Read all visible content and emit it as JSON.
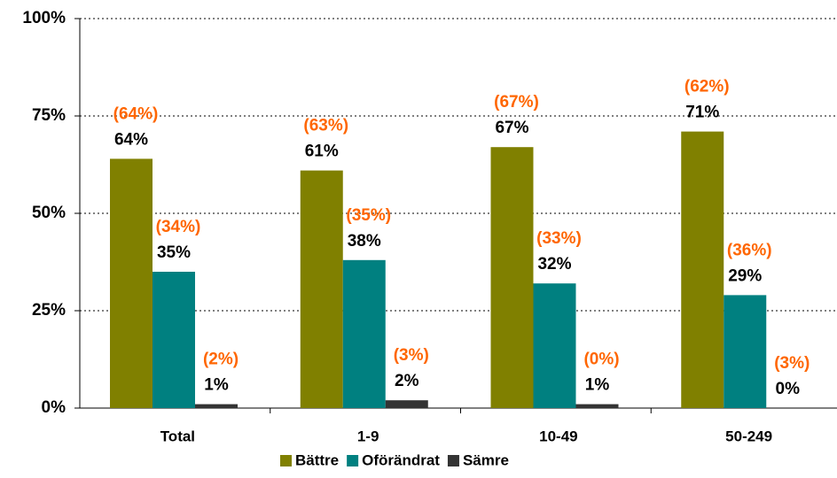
{
  "chart_data": {
    "type": "bar",
    "categories": [
      "Total",
      "1-9",
      "10-49",
      "50-249"
    ],
    "series": [
      {
        "name": "Bättre",
        "color": "#808000",
        "values": [
          64,
          61,
          67,
          71
        ],
        "value_labels": [
          "64%",
          "61%",
          "67%",
          "71%"
        ],
        "comparison_labels": [
          "(64%)",
          "(63%)",
          "(67%)",
          "(62%)"
        ]
      },
      {
        "name": "Oförändrat",
        "color": "#008080",
        "values": [
          35,
          38,
          32,
          29
        ],
        "value_labels": [
          "35%",
          "38%",
          "32%",
          "29%"
        ],
        "comparison_labels": [
          "(34%)",
          "(35%)",
          "(33%)",
          "(36%)"
        ]
      },
      {
        "name": "Sämre",
        "color": "#333333",
        "values": [
          1,
          2,
          1,
          0
        ],
        "value_labels": [
          "1%",
          "2%",
          "1%",
          "0%"
        ],
        "comparison_labels": [
          "(2%)",
          "(3%)",
          "(0%)",
          "(3%)"
        ]
      }
    ],
    "comparison_color": "#ff6600",
    "ylim": [
      0,
      100
    ],
    "yticks": [
      {
        "value": 0,
        "label": "0%"
      },
      {
        "value": 25,
        "label": "25%"
      },
      {
        "value": 50,
        "label": "50%"
      },
      {
        "value": 75,
        "label": "75%"
      },
      {
        "value": 100,
        "label": "100%"
      }
    ],
    "grid": true,
    "legend": "bottom"
  }
}
